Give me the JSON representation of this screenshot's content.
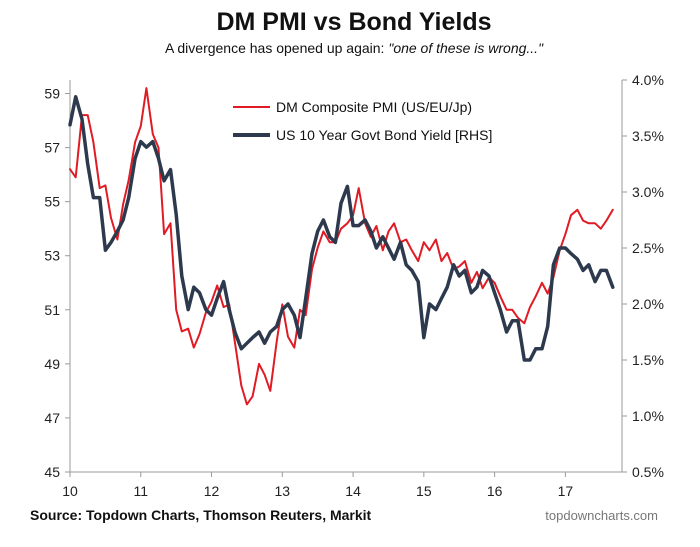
{
  "chart_data": {
    "type": "line",
    "title": "DM PMI vs Bond Yields",
    "subtitle_text": "A divergence has opened up again: ",
    "subtitle_quote": "\"one of these is wrong...\"",
    "source": "Source: Topdown Charts, Thomson Reuters, Markit",
    "watermark": "topdowncharts.com",
    "x_ticks": [
      "10",
      "11",
      "12",
      "13",
      "14",
      "15",
      "16",
      "17"
    ],
    "xlim": [
      2010.0,
      2017.8
    ],
    "y_left": {
      "ticks": [
        "59",
        "57",
        "55",
        "53",
        "51",
        "49",
        "47",
        "45"
      ],
      "ylim": [
        45,
        59.5
      ]
    },
    "y_right": {
      "ticks": [
        "4.0%",
        "3.5%",
        "3.0%",
        "2.5%",
        "2.0%",
        "1.5%",
        "1.0%",
        "0.5%"
      ],
      "ylim": [
        0.5,
        4.0
      ]
    },
    "legend_position": "top-center",
    "grid": false,
    "series": [
      {
        "name": "DM Composite PMI (US/EU/Jp)",
        "axis": "left",
        "color": "#e01b24",
        "x": [
          2010.0,
          2010.08,
          2010.17,
          2010.25,
          2010.33,
          2010.42,
          2010.5,
          2010.58,
          2010.67,
          2010.75,
          2010.83,
          2010.92,
          2011.0,
          2011.08,
          2011.17,
          2011.25,
          2011.33,
          2011.42,
          2011.5,
          2011.58,
          2011.67,
          2011.75,
          2011.83,
          2011.92,
          2012.0,
          2012.08,
          2012.17,
          2012.25,
          2012.33,
          2012.42,
          2012.5,
          2012.58,
          2012.67,
          2012.75,
          2012.83,
          2012.92,
          2013.0,
          2013.08,
          2013.17,
          2013.25,
          2013.33,
          2013.42,
          2013.5,
          2013.58,
          2013.67,
          2013.75,
          2013.83,
          2013.92,
          2014.0,
          2014.08,
          2014.17,
          2014.25,
          2014.33,
          2014.42,
          2014.5,
          2014.58,
          2014.67,
          2014.75,
          2014.83,
          2014.92,
          2015.0,
          2015.08,
          2015.17,
          2015.25,
          2015.33,
          2015.42,
          2015.5,
          2015.58,
          2015.67,
          2015.75,
          2015.83,
          2015.92,
          2016.0,
          2016.08,
          2016.17,
          2016.25,
          2016.33,
          2016.42,
          2016.5,
          2016.58,
          2016.67,
          2016.75,
          2016.83,
          2016.92,
          2017.0,
          2017.08,
          2017.17,
          2017.25,
          2017.33,
          2017.42,
          2017.5,
          2017.58,
          2017.67
        ],
        "values": [
          56.2,
          55.9,
          58.2,
          58.2,
          57.2,
          55.5,
          55.6,
          54.4,
          53.6,
          54.9,
          55.8,
          57.2,
          57.8,
          59.2,
          57.5,
          57.0,
          53.8,
          54.2,
          51.0,
          50.2,
          50.3,
          49.6,
          50.1,
          50.9,
          51.3,
          51.9,
          51.1,
          51.2,
          49.8,
          48.2,
          47.5,
          47.8,
          49.0,
          48.6,
          48.0,
          49.8,
          51.2,
          50.0,
          49.6,
          51.0,
          50.8,
          52.5,
          53.3,
          53.9,
          53.5,
          53.5,
          54.0,
          54.2,
          54.5,
          55.5,
          54.2,
          53.7,
          54.1,
          53.2,
          53.9,
          54.2,
          53.5,
          53.6,
          53.2,
          52.8,
          53.5,
          53.2,
          53.6,
          52.8,
          53.1,
          52.5,
          52.6,
          52.8,
          52.0,
          52.4,
          51.8,
          52.2,
          52.0,
          51.5,
          51.0,
          51.0,
          50.7,
          50.5,
          51.1,
          51.5,
          52.0,
          51.6,
          52.2,
          53.2,
          53.8,
          54.5,
          54.7,
          54.3,
          54.2,
          54.2,
          54.0,
          54.3,
          54.7
        ]
      },
      {
        "name": "US 10 Year Govt Bond Yield [RHS]",
        "axis": "right",
        "color": "#2d3a4e",
        "x": [
          2010.0,
          2010.08,
          2010.17,
          2010.25,
          2010.33,
          2010.42,
          2010.5,
          2010.58,
          2010.67,
          2010.75,
          2010.83,
          2010.92,
          2011.0,
          2011.08,
          2011.17,
          2011.25,
          2011.33,
          2011.42,
          2011.5,
          2011.58,
          2011.67,
          2011.75,
          2011.83,
          2011.92,
          2012.0,
          2012.08,
          2012.17,
          2012.25,
          2012.33,
          2012.42,
          2012.5,
          2012.58,
          2012.67,
          2012.75,
          2012.83,
          2012.92,
          2013.0,
          2013.08,
          2013.17,
          2013.25,
          2013.33,
          2013.42,
          2013.5,
          2013.58,
          2013.67,
          2013.75,
          2013.83,
          2013.92,
          2014.0,
          2014.08,
          2014.17,
          2014.25,
          2014.33,
          2014.42,
          2014.5,
          2014.58,
          2014.67,
          2014.75,
          2014.83,
          2014.92,
          2015.0,
          2015.08,
          2015.17,
          2015.25,
          2015.33,
          2015.42,
          2015.5,
          2015.58,
          2015.67,
          2015.75,
          2015.83,
          2015.92,
          2016.0,
          2016.08,
          2016.17,
          2016.25,
          2016.33,
          2016.42,
          2016.5,
          2016.58,
          2016.67,
          2016.75,
          2016.83,
          2016.92,
          2017.0,
          2017.08,
          2017.17,
          2017.25,
          2017.33,
          2017.42,
          2017.5,
          2017.58,
          2017.67
        ],
        "values": [
          3.6,
          3.85,
          3.65,
          3.25,
          2.95,
          2.95,
          2.48,
          2.55,
          2.65,
          2.75,
          2.95,
          3.3,
          3.45,
          3.4,
          3.45,
          3.3,
          3.1,
          3.2,
          2.8,
          2.25,
          1.95,
          2.15,
          2.1,
          1.95,
          1.9,
          2.05,
          2.2,
          1.95,
          1.75,
          1.6,
          1.65,
          1.7,
          1.75,
          1.65,
          1.75,
          1.8,
          1.95,
          2.0,
          1.9,
          1.7,
          2.05,
          2.45,
          2.65,
          2.75,
          2.6,
          2.55,
          2.9,
          3.05,
          2.7,
          2.7,
          2.75,
          2.65,
          2.5,
          2.6,
          2.5,
          2.4,
          2.55,
          2.35,
          2.3,
          2.2,
          1.7,
          2.0,
          1.95,
          2.05,
          2.15,
          2.35,
          2.25,
          2.3,
          2.1,
          2.15,
          2.3,
          2.25,
          2.1,
          1.95,
          1.75,
          1.85,
          1.85,
          1.5,
          1.5,
          1.6,
          1.6,
          1.8,
          2.35,
          2.5,
          2.5,
          2.45,
          2.4,
          2.3,
          2.35,
          2.2,
          2.3,
          2.3,
          2.15
        ]
      }
    ]
  }
}
